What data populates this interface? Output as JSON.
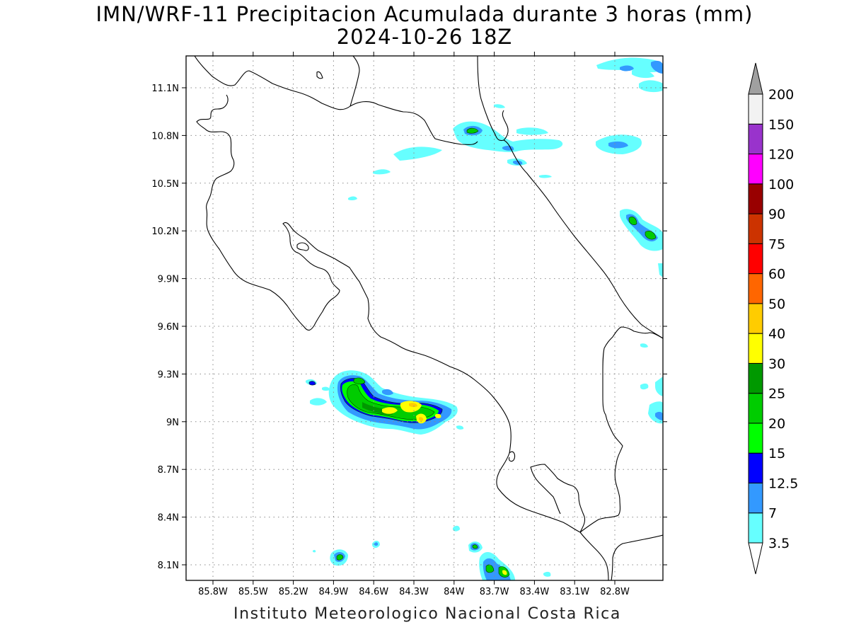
{
  "title": {
    "line1": "IMN/WRF-11 Precipitacion Acumulada durante 3 horas (mm)",
    "line2": "2024-10-26 18Z"
  },
  "footer": "Instituto Meteorologico Nacional Costa Rica",
  "map": {
    "lat_labels": [
      "11.1N",
      "10.8N",
      "10.5N",
      "10.2N",
      "9.9N",
      "9.6N",
      "9.3N",
      "9N",
      "8.7N",
      "8.4N",
      "8.1N"
    ],
    "lat_values": [
      11.1,
      10.8,
      10.5,
      10.2,
      9.9,
      9.6,
      9.3,
      9.0,
      8.7,
      8.4,
      8.1
    ],
    "lon_labels": [
      "85.8W",
      "85.5W",
      "85.2W",
      "84.9W",
      "84.6W",
      "84.3W",
      "84W",
      "83.7W",
      "83.4W",
      "83.1W",
      "82.8W"
    ],
    "lon_values": [
      -85.8,
      -85.5,
      -85.2,
      -84.9,
      -84.6,
      -84.3,
      -84.0,
      -83.7,
      -83.4,
      -83.1,
      -82.8
    ],
    "grid": true
  },
  "colorbar": {
    "labels": [
      "3.5",
      "7",
      "12.5",
      "15",
      "20",
      "25",
      "30",
      "40",
      "50",
      "60",
      "75",
      "90",
      "100",
      "120",
      "150",
      "200"
    ],
    "colors": [
      "#66ffff",
      "#3399ff",
      "#0000ff",
      "#00ff00",
      "#00cc00",
      "#009900",
      "#ffff00",
      "#ffcc00",
      "#ff6600",
      "#ff0000",
      "#cc3300",
      "#990000",
      "#ff00ff",
      "#9933cc",
      "#f2f2f2"
    ],
    "top_arrow_color": "#a0a0a0",
    "bottom_arrow_color": "#ffffff"
  },
  "colors": {
    "light": "#66ffff",
    "mid": "#3399ff",
    "blue": "#0000ff",
    "green": "#00cc00",
    "bright_green": "#00ff00",
    "dark_green": "#009900",
    "yellow": "#ffff00",
    "orange_yellow": "#ffcc00"
  }
}
